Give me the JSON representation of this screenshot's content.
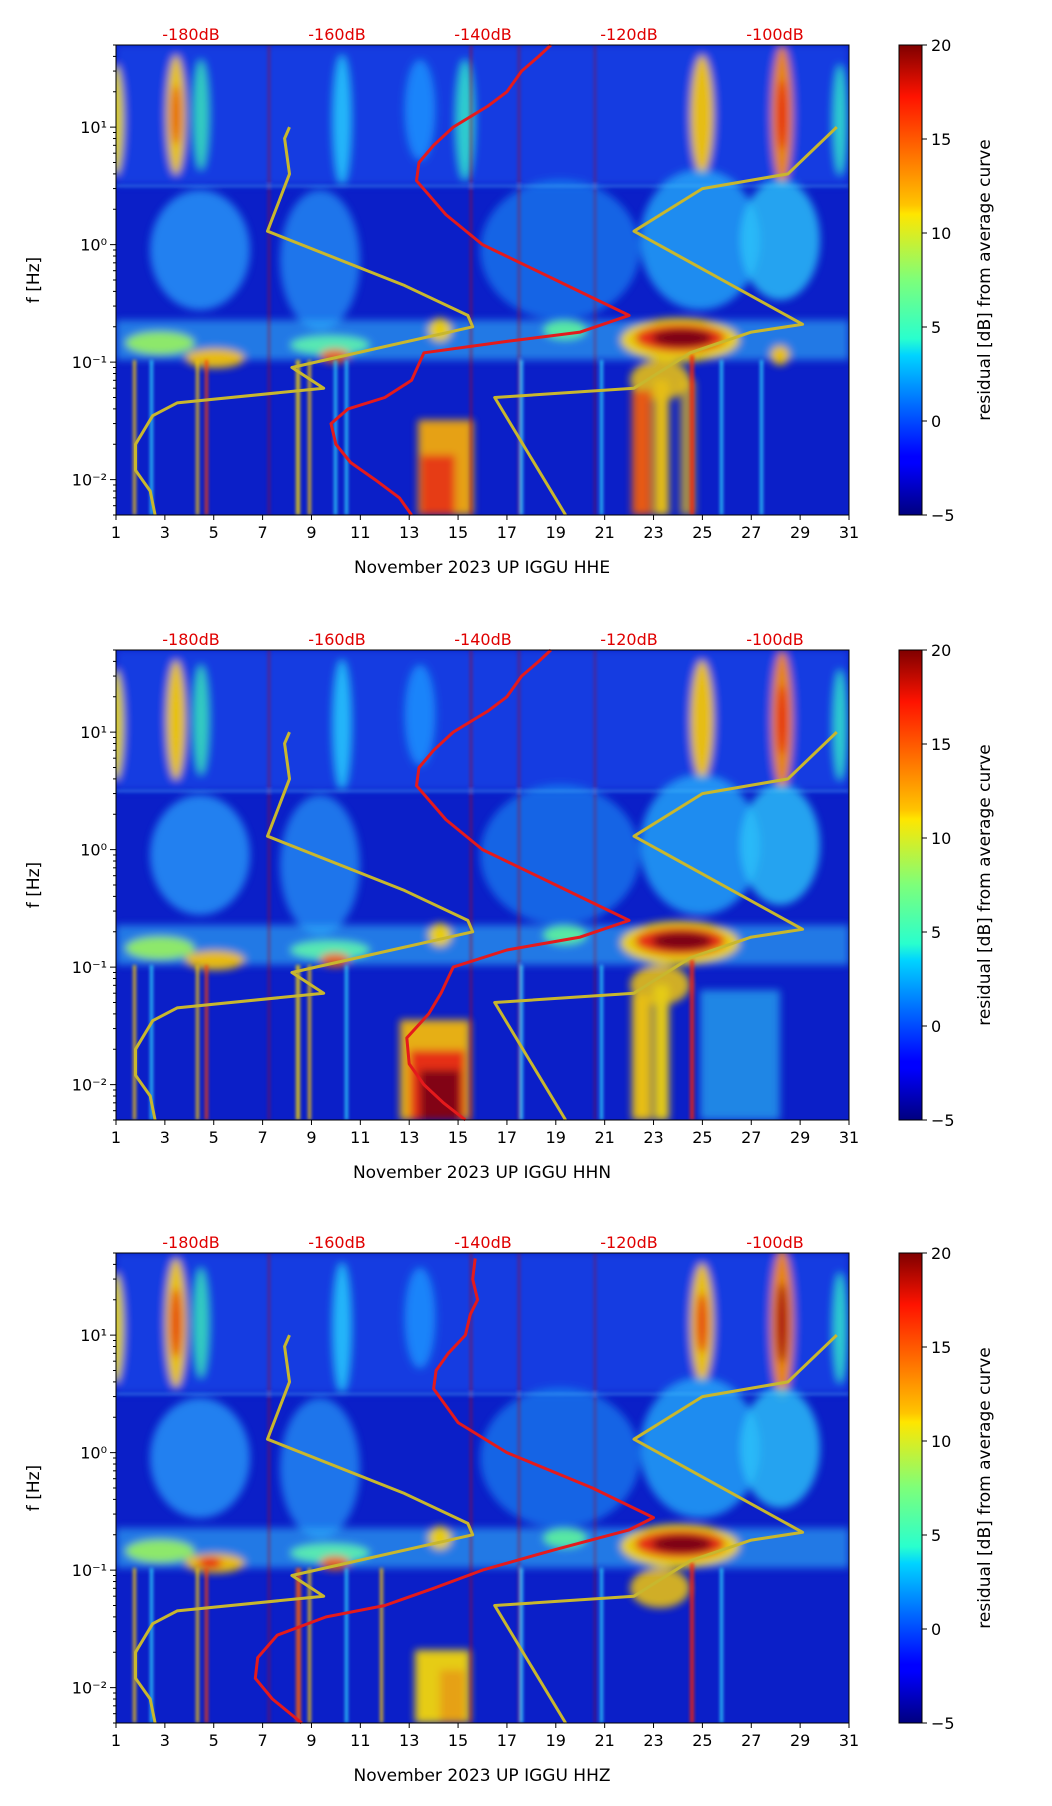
{
  "colorbar": {
    "label": "residual [dB] from average curve",
    "ticks": [
      "20",
      "15",
      "10",
      "5",
      "0",
      "−5"
    ],
    "range": [
      -5,
      20
    ],
    "colormap": "jet"
  },
  "chart_data": [
    {
      "type": "heatmap",
      "xlabel": "November 2023 UP IGGU  HHE",
      "ylabel": "f [Hz]",
      "x_ticks": [
        "1",
        "3",
        "5",
        "7",
        "9",
        "11",
        "13",
        "15",
        "17",
        "19",
        "21",
        "23",
        "25",
        "27",
        "29",
        "31"
      ],
      "y_ticks": [
        "10¹",
        "10⁰",
        "10⁻¹",
        "10⁻²"
      ],
      "top_ticks": [
        "-180dB",
        "-160dB",
        "-140dB",
        "-120dB",
        "-100dB"
      ],
      "xlim": [
        1,
        31
      ],
      "ylim": [
        0.005,
        50
      ],
      "yscale": "log",
      "series": [
        {
          "color": "#e41a1c",
          "points": [
            [
              13.1,
              0.005
            ],
            [
              12.6,
              0.007
            ],
            [
              11.6,
              0.01
            ],
            [
              10.6,
              0.014
            ],
            [
              10.0,
              0.02
            ],
            [
              9.8,
              0.03
            ],
            [
              10.5,
              0.04
            ],
            [
              12,
              0.05
            ],
            [
              13.1,
              0.07
            ],
            [
              13.6,
              0.12
            ],
            [
              17,
              0.15
            ],
            [
              20,
              0.18
            ],
            [
              22,
              0.25
            ],
            [
              19,
              0.5
            ],
            [
              16,
              1.0
            ],
            [
              14.5,
              1.8
            ],
            [
              13.3,
              3.5
            ],
            [
              13.4,
              5
            ],
            [
              14,
              7
            ],
            [
              14.8,
              10
            ],
            [
              16.2,
              15
            ],
            [
              17,
              20
            ],
            [
              17.6,
              30
            ],
            [
              18.3,
              40
            ],
            [
              18.8,
              50
            ]
          ]
        },
        {
          "color": "#c8b72e",
          "points": [
            [
              2.6,
              0.005
            ],
            [
              2.4,
              0.008
            ],
            [
              1.8,
              0.012
            ],
            [
              1.8,
              0.02
            ],
            [
              2.5,
              0.035
            ],
            [
              3.5,
              0.045
            ],
            [
              9.5,
              0.06
            ],
            [
              8.2,
              0.09
            ],
            [
              15.6,
              0.2
            ],
            [
              15.4,
              0.25
            ],
            [
              12.8,
              0.45
            ],
            [
              7.2,
              1.3
            ],
            [
              8.1,
              4
            ],
            [
              7.9,
              8
            ],
            [
              8.1,
              10
            ]
          ]
        },
        {
          "color": "#c8b72e",
          "points": [
            [
              19.4,
              0.005
            ],
            [
              16.5,
              0.05
            ],
            [
              22.2,
              0.06
            ],
            [
              24.5,
              0.12
            ],
            [
              27,
              0.18
            ],
            [
              29.1,
              0.21
            ],
            [
              22.2,
              1.3
            ],
            [
              25,
              3
            ],
            [
              28.5,
              4
            ],
            [
              30.5,
              10
            ]
          ]
        }
      ]
    },
    {
      "type": "heatmap",
      "xlabel": "November 2023 UP IGGU  HHN",
      "ylabel": "f [Hz]",
      "x_ticks": [
        "1",
        "3",
        "5",
        "7",
        "9",
        "11",
        "13",
        "15",
        "17",
        "19",
        "21",
        "23",
        "25",
        "27",
        "29",
        "31"
      ],
      "y_ticks": [
        "10¹",
        "10⁰",
        "10⁻¹",
        "10⁻²"
      ],
      "top_ticks": [
        "-180dB",
        "-160dB",
        "-140dB",
        "-120dB",
        "-100dB"
      ],
      "xlim": [
        1,
        31
      ],
      "ylim": [
        0.005,
        50
      ],
      "yscale": "log",
      "series": [
        {
          "color": "#e41a1c",
          "points": [
            [
              15.3,
              0.005
            ],
            [
              14.4,
              0.007
            ],
            [
              13.6,
              0.01
            ],
            [
              13.0,
              0.015
            ],
            [
              12.9,
              0.025
            ],
            [
              13.8,
              0.04
            ],
            [
              14.3,
              0.06
            ],
            [
              14.8,
              0.1
            ],
            [
              17,
              0.14
            ],
            [
              20,
              0.18
            ],
            [
              22,
              0.25
            ],
            [
              19,
              0.5
            ],
            [
              16,
              1.0
            ],
            [
              14.5,
              1.8
            ],
            [
              13.3,
              3.5
            ],
            [
              13.4,
              5
            ],
            [
              14,
              7
            ],
            [
              14.8,
              10
            ],
            [
              16.2,
              15
            ],
            [
              17,
              20
            ],
            [
              17.6,
              30
            ],
            [
              18.3,
              40
            ],
            [
              18.8,
              50
            ]
          ]
        },
        {
          "color": "#c8b72e",
          "points": [
            [
              2.6,
              0.005
            ],
            [
              2.4,
              0.008
            ],
            [
              1.8,
              0.012
            ],
            [
              1.8,
              0.02
            ],
            [
              2.5,
              0.035
            ],
            [
              3.5,
              0.045
            ],
            [
              9.5,
              0.06
            ],
            [
              8.2,
              0.09
            ],
            [
              15.6,
              0.2
            ],
            [
              15.4,
              0.25
            ],
            [
              12.8,
              0.45
            ],
            [
              7.2,
              1.3
            ],
            [
              8.1,
              4
            ],
            [
              7.9,
              8
            ],
            [
              8.1,
              10
            ]
          ]
        },
        {
          "color": "#c8b72e",
          "points": [
            [
              19.4,
              0.005
            ],
            [
              16.5,
              0.05
            ],
            [
              22.2,
              0.06
            ],
            [
              24.5,
              0.12
            ],
            [
              27,
              0.18
            ],
            [
              29.1,
              0.21
            ],
            [
              22.2,
              1.3
            ],
            [
              25,
              3
            ],
            [
              28.5,
              4
            ],
            [
              30.5,
              10
            ]
          ]
        }
      ]
    },
    {
      "type": "heatmap",
      "xlabel": "November 2023 UP IGGU  HHZ",
      "ylabel": "f [Hz]",
      "x_ticks": [
        "1",
        "3",
        "5",
        "7",
        "9",
        "11",
        "13",
        "15",
        "17",
        "19",
        "21",
        "23",
        "25",
        "27",
        "29",
        "31"
      ],
      "y_ticks": [
        "10¹",
        "10⁰",
        "10⁻¹",
        "10⁻²"
      ],
      "top_ticks": [
        "-180dB",
        "-160dB",
        "-140dB",
        "-120dB",
        "-100dB"
      ],
      "xlim": [
        1,
        31
      ],
      "ylim": [
        0.005,
        50
      ],
      "yscale": "log",
      "series": [
        {
          "color": "#e41a1c",
          "points": [
            [
              8.6,
              0.005
            ],
            [
              7.4,
              0.008
            ],
            [
              6.7,
              0.012
            ],
            [
              6.8,
              0.018
            ],
            [
              7.6,
              0.028
            ],
            [
              9.6,
              0.04
            ],
            [
              12,
              0.05
            ],
            [
              14,
              0.07
            ],
            [
              16,
              0.1
            ],
            [
              19,
              0.15
            ],
            [
              22,
              0.22
            ],
            [
              23,
              0.28
            ],
            [
              20.5,
              0.5
            ],
            [
              17,
              1.0
            ],
            [
              15,
              1.8
            ],
            [
              14,
              3.5
            ],
            [
              14.1,
              5
            ],
            [
              14.6,
              7
            ],
            [
              15.3,
              10
            ],
            [
              15.5,
              15
            ],
            [
              15.8,
              20
            ],
            [
              15.6,
              30
            ],
            [
              15.7,
              45
            ]
          ]
        },
        {
          "color": "#c8b72e",
          "points": [
            [
              2.6,
              0.005
            ],
            [
              2.4,
              0.008
            ],
            [
              1.8,
              0.012
            ],
            [
              1.8,
              0.02
            ],
            [
              2.5,
              0.035
            ],
            [
              3.5,
              0.045
            ],
            [
              9.5,
              0.06
            ],
            [
              8.2,
              0.09
            ],
            [
              15.6,
              0.2
            ],
            [
              15.4,
              0.25
            ],
            [
              12.8,
              0.45
            ],
            [
              7.2,
              1.3
            ],
            [
              8.1,
              4
            ],
            [
              7.9,
              8
            ],
            [
              8.1,
              10
            ]
          ]
        },
        {
          "color": "#c8b72e",
          "points": [
            [
              19.4,
              0.005
            ],
            [
              16.5,
              0.05
            ],
            [
              22.2,
              0.06
            ],
            [
              24.5,
              0.12
            ],
            [
              27,
              0.18
            ],
            [
              29.1,
              0.21
            ],
            [
              22.2,
              1.3
            ],
            [
              25,
              3
            ],
            [
              28.5,
              4
            ],
            [
              30.5,
              10
            ]
          ]
        }
      ]
    }
  ]
}
